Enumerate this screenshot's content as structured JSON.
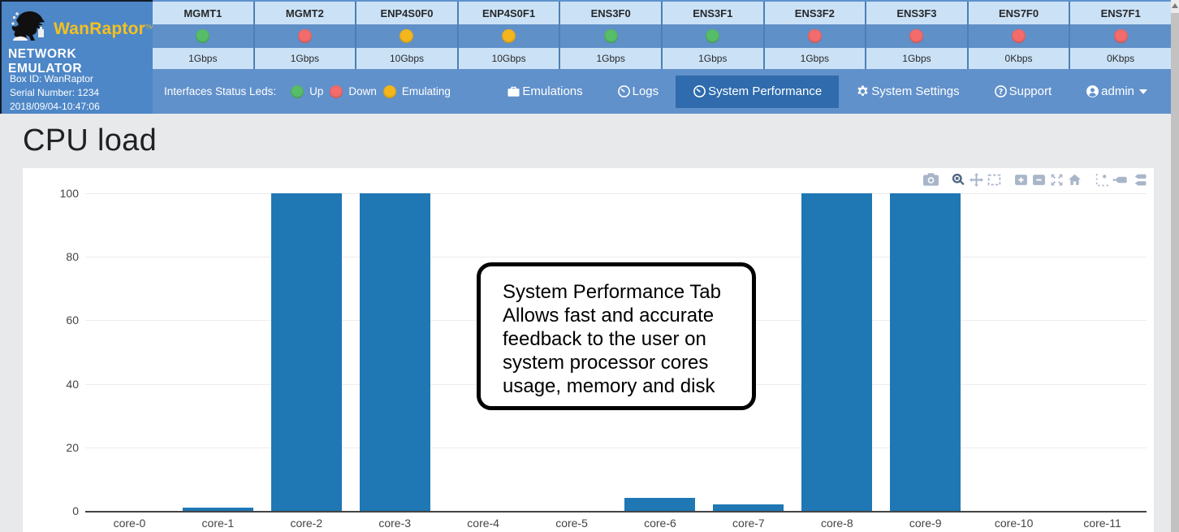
{
  "brand": {
    "name": "WanRaptor",
    "tm": "TM",
    "subtitle": "NETWORK EMULATOR",
    "box_id": "Box ID: WanRaptor",
    "serial": "Serial Number: 1234",
    "datetime": "2018/09/04-10:47:06"
  },
  "status_colors": {
    "up": "#57bd68",
    "down": "#f46b6b",
    "emulating": "#f4b61d"
  },
  "interfaces": [
    {
      "name": "MGMT1",
      "status": "up",
      "speed": "1Gbps"
    },
    {
      "name": "MGMT2",
      "status": "down",
      "speed": "1Gbps"
    },
    {
      "name": "ENP4S0F0",
      "status": "emulating",
      "speed": "10Gbps"
    },
    {
      "name": "ENP4S0F1",
      "status": "emulating",
      "speed": "10Gbps"
    },
    {
      "name": "ENS3F0",
      "status": "up",
      "speed": "1Gbps"
    },
    {
      "name": "ENS3F1",
      "status": "up",
      "speed": "1Gbps"
    },
    {
      "name": "ENS3F2",
      "status": "down",
      "speed": "1Gbps"
    },
    {
      "name": "ENS3F3",
      "status": "down",
      "speed": "1Gbps"
    },
    {
      "name": "ENS7F0",
      "status": "down",
      "speed": "0Kbps"
    },
    {
      "name": "ENS7F1",
      "status": "down",
      "speed": "0Kbps"
    }
  ],
  "legend": {
    "label": "Interfaces Status Leds:",
    "items": [
      {
        "label": "Up",
        "status": "up"
      },
      {
        "label": "Down",
        "status": "down"
      },
      {
        "label": "Emulating",
        "status": "emulating"
      }
    ]
  },
  "nav": {
    "tabs": [
      {
        "label": "Emulations",
        "icon": "briefcase-icon",
        "active": false
      },
      {
        "label": "Logs",
        "icon": "gauge-icon",
        "active": false
      },
      {
        "label": "System Performance",
        "icon": "gauge-icon",
        "active": true
      },
      {
        "label": "System Settings",
        "icon": "gear-icon",
        "active": false
      },
      {
        "label": "Support",
        "icon": "question-icon",
        "active": false
      }
    ],
    "user": {
      "label": "admin",
      "icon": "user-icon"
    }
  },
  "page": {
    "title": "CPU load"
  },
  "callout": {
    "text": "System Performance Tab\nAllows fast and accurate\nfeedback to the user on\nsystem processor cores\nusage, memory and disk"
  },
  "modebar": [
    "camera-icon",
    "zoom-icon",
    "pan-icon",
    "box-select-icon",
    "zoom-in-icon",
    "zoom-out-icon",
    "autoscale-icon",
    "reset-axes-icon",
    "spikelines-icon",
    "hover-closest-icon",
    "hover-compare-icon"
  ],
  "chart_data": {
    "type": "bar",
    "title": "CPU load",
    "categories": [
      "core-0",
      "core-1",
      "core-2",
      "core-3",
      "core-4",
      "core-5",
      "core-6",
      "core-7",
      "core-8",
      "core-9",
      "core-10",
      "core-11"
    ],
    "values": [
      0,
      1,
      100,
      100,
      0,
      0,
      4,
      2,
      100,
      100,
      0,
      0
    ],
    "xlabel": "",
    "ylabel": "",
    "ylim": [
      0,
      100
    ],
    "yticks": [
      0,
      20,
      40,
      60,
      80,
      100
    ],
    "bar_color": "#1f77b4",
    "grid": true,
    "legend_position": "none"
  }
}
